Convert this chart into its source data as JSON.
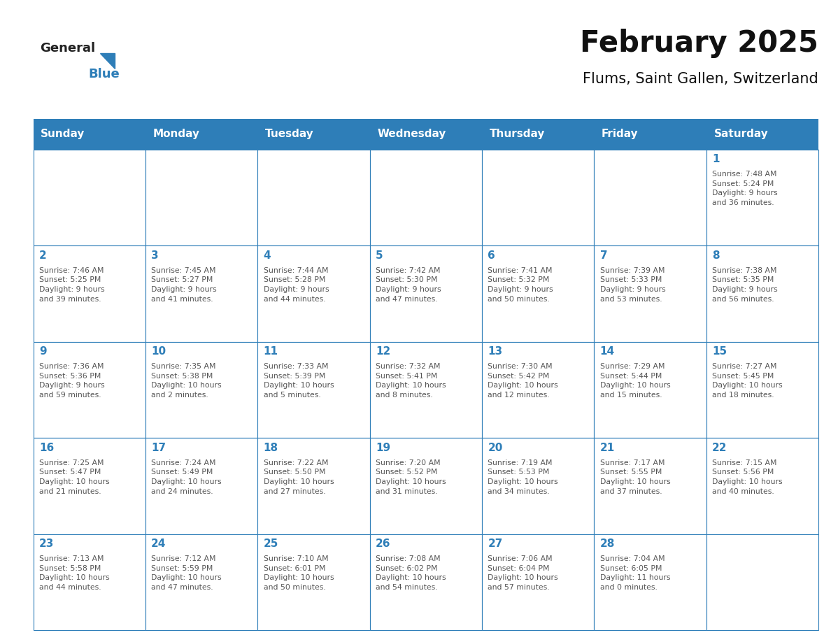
{
  "title": "February 2025",
  "subtitle": "Flums, Saint Gallen, Switzerland",
  "header_bg_color": "#2E7EB8",
  "header_text_color": "#FFFFFF",
  "header_days": [
    "Sunday",
    "Monday",
    "Tuesday",
    "Wednesday",
    "Thursday",
    "Friday",
    "Saturday"
  ],
  "cell_bg_color": "#FFFFFF",
  "cell_border_color": "#2E7EB8",
  "day_number_color": "#2E7EB8",
  "text_color": "#555555",
  "logo_general_color": "#222222",
  "logo_blue_color": "#2E7EB8",
  "weeks": [
    [
      {
        "day": null,
        "info": null
      },
      {
        "day": null,
        "info": null
      },
      {
        "day": null,
        "info": null
      },
      {
        "day": null,
        "info": null
      },
      {
        "day": null,
        "info": null
      },
      {
        "day": null,
        "info": null
      },
      {
        "day": 1,
        "info": "Sunrise: 7:48 AM\nSunset: 5:24 PM\nDaylight: 9 hours\nand 36 minutes."
      }
    ],
    [
      {
        "day": 2,
        "info": "Sunrise: 7:46 AM\nSunset: 5:25 PM\nDaylight: 9 hours\nand 39 minutes."
      },
      {
        "day": 3,
        "info": "Sunrise: 7:45 AM\nSunset: 5:27 PM\nDaylight: 9 hours\nand 41 minutes."
      },
      {
        "day": 4,
        "info": "Sunrise: 7:44 AM\nSunset: 5:28 PM\nDaylight: 9 hours\nand 44 minutes."
      },
      {
        "day": 5,
        "info": "Sunrise: 7:42 AM\nSunset: 5:30 PM\nDaylight: 9 hours\nand 47 minutes."
      },
      {
        "day": 6,
        "info": "Sunrise: 7:41 AM\nSunset: 5:32 PM\nDaylight: 9 hours\nand 50 minutes."
      },
      {
        "day": 7,
        "info": "Sunrise: 7:39 AM\nSunset: 5:33 PM\nDaylight: 9 hours\nand 53 minutes."
      },
      {
        "day": 8,
        "info": "Sunrise: 7:38 AM\nSunset: 5:35 PM\nDaylight: 9 hours\nand 56 minutes."
      }
    ],
    [
      {
        "day": 9,
        "info": "Sunrise: 7:36 AM\nSunset: 5:36 PM\nDaylight: 9 hours\nand 59 minutes."
      },
      {
        "day": 10,
        "info": "Sunrise: 7:35 AM\nSunset: 5:38 PM\nDaylight: 10 hours\nand 2 minutes."
      },
      {
        "day": 11,
        "info": "Sunrise: 7:33 AM\nSunset: 5:39 PM\nDaylight: 10 hours\nand 5 minutes."
      },
      {
        "day": 12,
        "info": "Sunrise: 7:32 AM\nSunset: 5:41 PM\nDaylight: 10 hours\nand 8 minutes."
      },
      {
        "day": 13,
        "info": "Sunrise: 7:30 AM\nSunset: 5:42 PM\nDaylight: 10 hours\nand 12 minutes."
      },
      {
        "day": 14,
        "info": "Sunrise: 7:29 AM\nSunset: 5:44 PM\nDaylight: 10 hours\nand 15 minutes."
      },
      {
        "day": 15,
        "info": "Sunrise: 7:27 AM\nSunset: 5:45 PM\nDaylight: 10 hours\nand 18 minutes."
      }
    ],
    [
      {
        "day": 16,
        "info": "Sunrise: 7:25 AM\nSunset: 5:47 PM\nDaylight: 10 hours\nand 21 minutes."
      },
      {
        "day": 17,
        "info": "Sunrise: 7:24 AM\nSunset: 5:49 PM\nDaylight: 10 hours\nand 24 minutes."
      },
      {
        "day": 18,
        "info": "Sunrise: 7:22 AM\nSunset: 5:50 PM\nDaylight: 10 hours\nand 27 minutes."
      },
      {
        "day": 19,
        "info": "Sunrise: 7:20 AM\nSunset: 5:52 PM\nDaylight: 10 hours\nand 31 minutes."
      },
      {
        "day": 20,
        "info": "Sunrise: 7:19 AM\nSunset: 5:53 PM\nDaylight: 10 hours\nand 34 minutes."
      },
      {
        "day": 21,
        "info": "Sunrise: 7:17 AM\nSunset: 5:55 PM\nDaylight: 10 hours\nand 37 minutes."
      },
      {
        "day": 22,
        "info": "Sunrise: 7:15 AM\nSunset: 5:56 PM\nDaylight: 10 hours\nand 40 minutes."
      }
    ],
    [
      {
        "day": 23,
        "info": "Sunrise: 7:13 AM\nSunset: 5:58 PM\nDaylight: 10 hours\nand 44 minutes."
      },
      {
        "day": 24,
        "info": "Sunrise: 7:12 AM\nSunset: 5:59 PM\nDaylight: 10 hours\nand 47 minutes."
      },
      {
        "day": 25,
        "info": "Sunrise: 7:10 AM\nSunset: 6:01 PM\nDaylight: 10 hours\nand 50 minutes."
      },
      {
        "day": 26,
        "info": "Sunrise: 7:08 AM\nSunset: 6:02 PM\nDaylight: 10 hours\nand 54 minutes."
      },
      {
        "day": 27,
        "info": "Sunrise: 7:06 AM\nSunset: 6:04 PM\nDaylight: 10 hours\nand 57 minutes."
      },
      {
        "day": 28,
        "info": "Sunrise: 7:04 AM\nSunset: 6:05 PM\nDaylight: 11 hours\nand 0 minutes."
      },
      {
        "day": null,
        "info": null
      }
    ]
  ]
}
